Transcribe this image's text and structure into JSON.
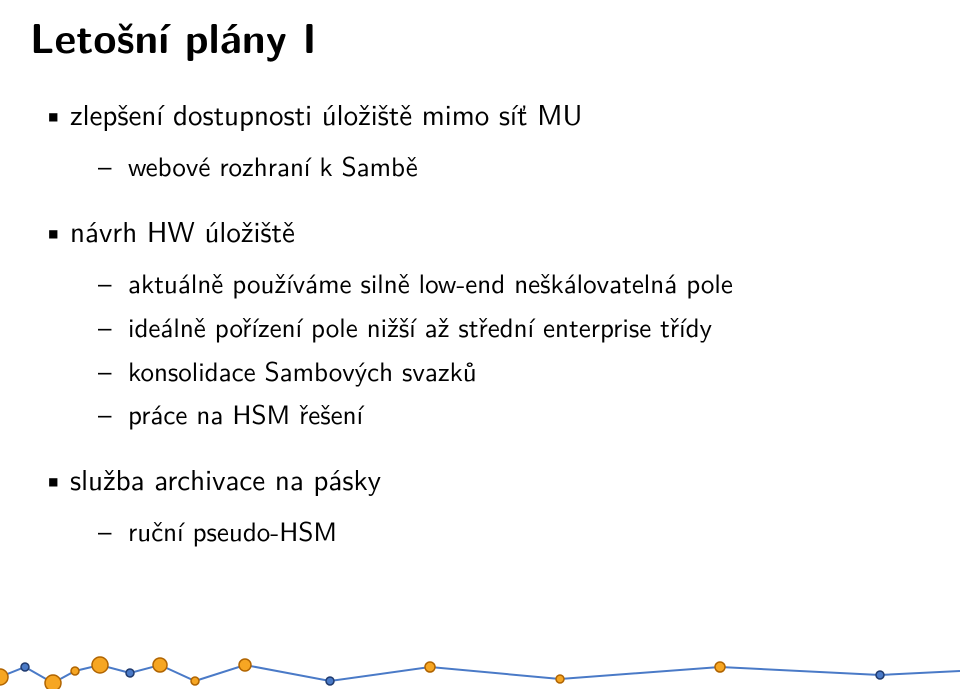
{
  "title": "Letošní plány I",
  "bullets": [
    {
      "text": "zlepšení dostupnosti úložiště mimo síť MU",
      "sub": [
        "webové rozhraní k Sambě"
      ]
    },
    {
      "text": "návrh HW úložiště",
      "sub": [
        "aktuálně používáme silně low-end neškálovatelná pole",
        "ideálně pořízení pole nižší až střední enterprise třídy",
        "konsolidace Sambových svazků",
        "práce na HSM řešení"
      ]
    },
    {
      "text": "služba archivace na pásky",
      "sub": [
        "ruční pseudo-HSM"
      ]
    }
  ],
  "deco": {
    "line_color": "#4a7ac7",
    "big_orange": {
      "fill": "#f6a623",
      "stroke": "#b06400"
    },
    "small_orange": {
      "fill": "#f6a623",
      "stroke": "#b06400"
    },
    "blue_circle": {
      "fill": "#4a7ac7",
      "stroke": "#1f3a6e"
    },
    "background": "#ffffff"
  }
}
